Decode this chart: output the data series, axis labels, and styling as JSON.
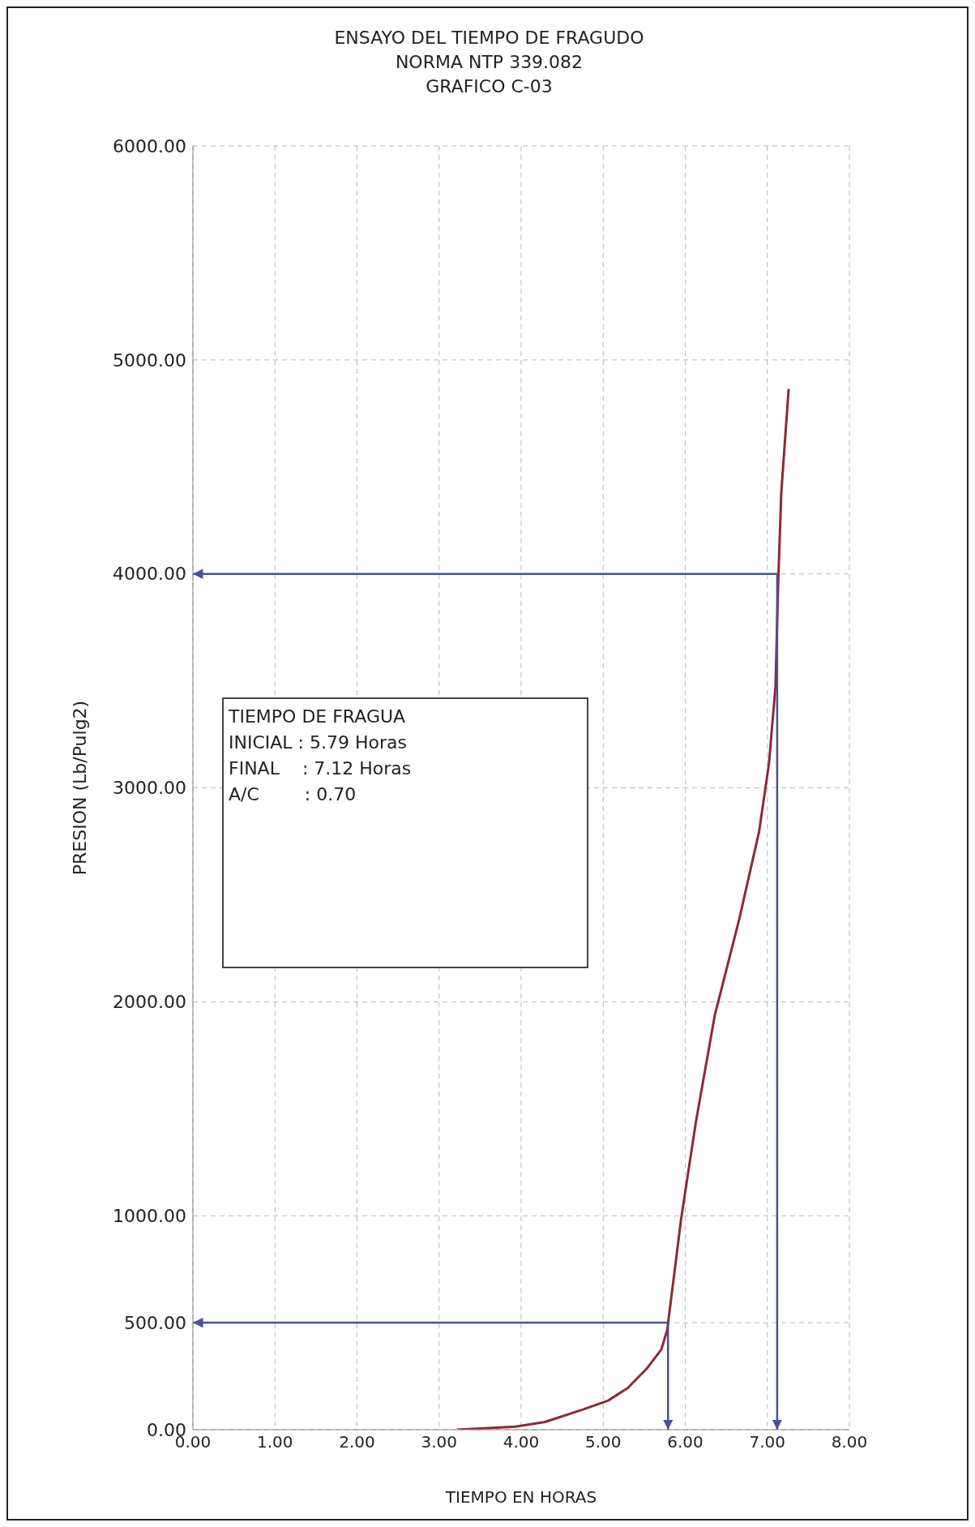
{
  "chart_data": {
    "type": "line",
    "title": "ENSAYO DEL TIEMPO DE FRAGUDO",
    "subtitle": "NORMA NTP 339.082\nGRAFICO C-03",
    "xlabel": "TIEMPO EN HORAS",
    "ylabel": "PRESION (Lb/Pulg2)",
    "xlim": [
      0,
      8
    ],
    "xticks": [
      {
        "value": 0,
        "label": "0.00"
      },
      {
        "value": 1,
        "label": "1.00"
      },
      {
        "value": 2,
        "label": "2.00"
      },
      {
        "value": 3,
        "label": "3.00"
      },
      {
        "value": 4,
        "label": "4.00"
      },
      {
        "value": 5,
        "label": "5.00"
      },
      {
        "value": 6,
        "label": "6.00"
      },
      {
        "value": 7,
        "label": "7.00"
      },
      {
        "value": 8,
        "label": "8.00"
      }
    ],
    "ylim": [
      0,
      6000
    ],
    "yticks": [
      {
        "value": 0,
        "label": "0.00"
      },
      {
        "value": 500,
        "label": "500.00"
      },
      {
        "value": 1000,
        "label": "1000.00"
      },
      {
        "value": 2000,
        "label": "2000.00"
      },
      {
        "value": 3000,
        "label": "3000.00"
      },
      {
        "value": 4000,
        "label": "4000.00"
      },
      {
        "value": 5000,
        "label": "5000.00"
      },
      {
        "value": 6000,
        "label": "6000.00"
      }
    ],
    "grid": true,
    "line_style": "solid",
    "series": [
      {
        "color": "#8b2a3a",
        "x": [
          3.22,
          3.93,
          4.29,
          4.76,
          5.06,
          5.3,
          5.53,
          5.71,
          5.78,
          5.95,
          6.13,
          6.36,
          6.66,
          6.9,
          7.02,
          7.1,
          7.13,
          7.17,
          7.26
        ],
        "values": [
          0,
          14,
          36,
          95,
          136,
          195,
          285,
          376,
          466,
          986,
          1439,
          1937,
          2389,
          2796,
          3113,
          3475,
          3928,
          4380,
          4864
        ]
      },
      {
        "color": "#4a4f9a",
        "x": [
          0,
          5.79,
          5.79
        ],
        "values": [
          500,
          500,
          0
        ]
      },
      {
        "color": "#4a4f9a",
        "x": [
          0,
          7.12,
          7.12
        ],
        "values": [
          4000,
          4000,
          0
        ]
      }
    ],
    "annotations": [
      "TIEMPO DE FRAGUA",
      "INICIAL : 5.79 Horas",
      "FINAL    : 7.12 Horas",
      "A/C        : 0.70"
    ]
  }
}
